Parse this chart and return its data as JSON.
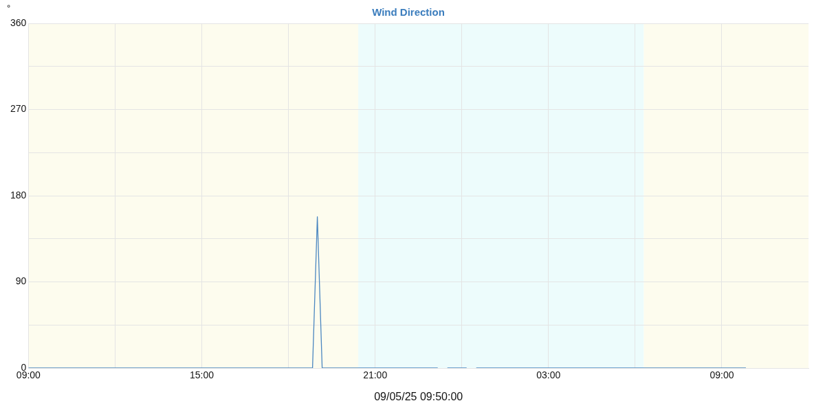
{
  "chart_data": {
    "type": "line",
    "title": "Wind Direction",
    "ylabel": "°",
    "xlabel": "09/05/25 09:50:00",
    "x": [
      "--05-08T09:00",
      "--05-08T18:50",
      "--05-08T19:00",
      "--05-08T19:10",
      "--05-08T23:10",
      "--05-08T23:20",
      "--05-08T23:30",
      "--05-09T00:10",
      "--05-09T00:20",
      "--05-09T00:30",
      "--05-09T09:50"
    ],
    "series": [
      {
        "color": "#4a86c0",
        "values": [
          0,
          0,
          158,
          0,
          0,
          null,
          0,
          0,
          null,
          0,
          0
        ]
      }
    ],
    "xlim": [
      "--05-08T09:00",
      "--05-09T12:00"
    ],
    "xticks": [
      {
        "value": "--05-08T09:00",
        "label": "09:00"
      },
      {
        "value": "--05-08T12:00",
        "label": null
      },
      {
        "value": "--05-08T15:00",
        "label": "15:00"
      },
      {
        "value": "--05-08T18:00",
        "label": null
      },
      {
        "value": "--05-08T21:00",
        "label": "21:00"
      },
      {
        "value": "--05-09T00:00",
        "label": null
      },
      {
        "value": "--05-09T03:00",
        "label": "03:00"
      },
      {
        "value": "--05-09T06:00",
        "label": null
      },
      {
        "value": "--05-09T09:00",
        "label": "09:00"
      }
    ],
    "ylim": [
      0,
      360
    ],
    "yticks": [
      0,
      {
        "value": 45,
        "label": null
      },
      90,
      {
        "value": 135,
        "label": null
      },
      180,
      {
        "value": 225,
        "label": null
      },
      270,
      {
        "value": 315,
        "label": null
      },
      360
    ],
    "bands": [
      {
        "axis": "x",
        "from": "--05-08T09:00",
        "to": "--05-08T20:25",
        "color": "#fdfcee"
      },
      {
        "axis": "x",
        "from": "--05-08T20:25",
        "to": "--05-09T06:18",
        "color": "#edfcfc"
      },
      {
        "axis": "x",
        "from": "--05-09T06:18",
        "to": "--05-09T12:00",
        "color": "#fdfcee"
      }
    ],
    "grid": true,
    "marker": "none",
    "line_style": "solid",
    "legend": false
  }
}
